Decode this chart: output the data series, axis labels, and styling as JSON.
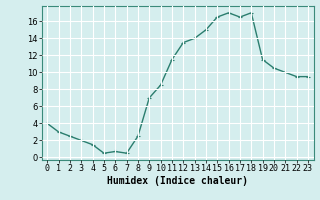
{
  "x": [
    0,
    1,
    2,
    3,
    4,
    5,
    6,
    7,
    8,
    9,
    10,
    11,
    12,
    13,
    14,
    15,
    16,
    17,
    18,
    19,
    20,
    21,
    22,
    23
  ],
  "y": [
    4.0,
    3.0,
    2.5,
    2.0,
    1.5,
    0.5,
    0.7,
    0.5,
    2.5,
    7.0,
    8.5,
    11.5,
    13.5,
    14.0,
    15.0,
    16.5,
    17.0,
    16.5,
    17.0,
    11.5,
    10.5,
    10.0,
    9.5,
    9.5
  ],
  "line_color": "#2a7d6e",
  "marker": "+",
  "marker_size": 3,
  "linewidth": 1.0,
  "xlabel": "Humidex (Indice chaleur)",
  "xlabel_fontsize": 7,
  "ylabel_ticks": [
    0,
    2,
    4,
    6,
    8,
    10,
    12,
    14,
    16
  ],
  "xtick_labels": [
    "0",
    "1",
    "2",
    "3",
    "4",
    "5",
    "6",
    "7",
    "8",
    "9",
    "10",
    "11",
    "12",
    "13",
    "14",
    "15",
    "16",
    "17",
    "18",
    "19",
    "20",
    "21",
    "22",
    "23"
  ],
  "ylim": [
    -0.3,
    17.8
  ],
  "xlim": [
    -0.5,
    23.5
  ],
  "background_color": "#d5eeee",
  "grid_color": "#ffffff",
  "tick_fontsize": 6,
  "marker_edge_width": 0.8
}
